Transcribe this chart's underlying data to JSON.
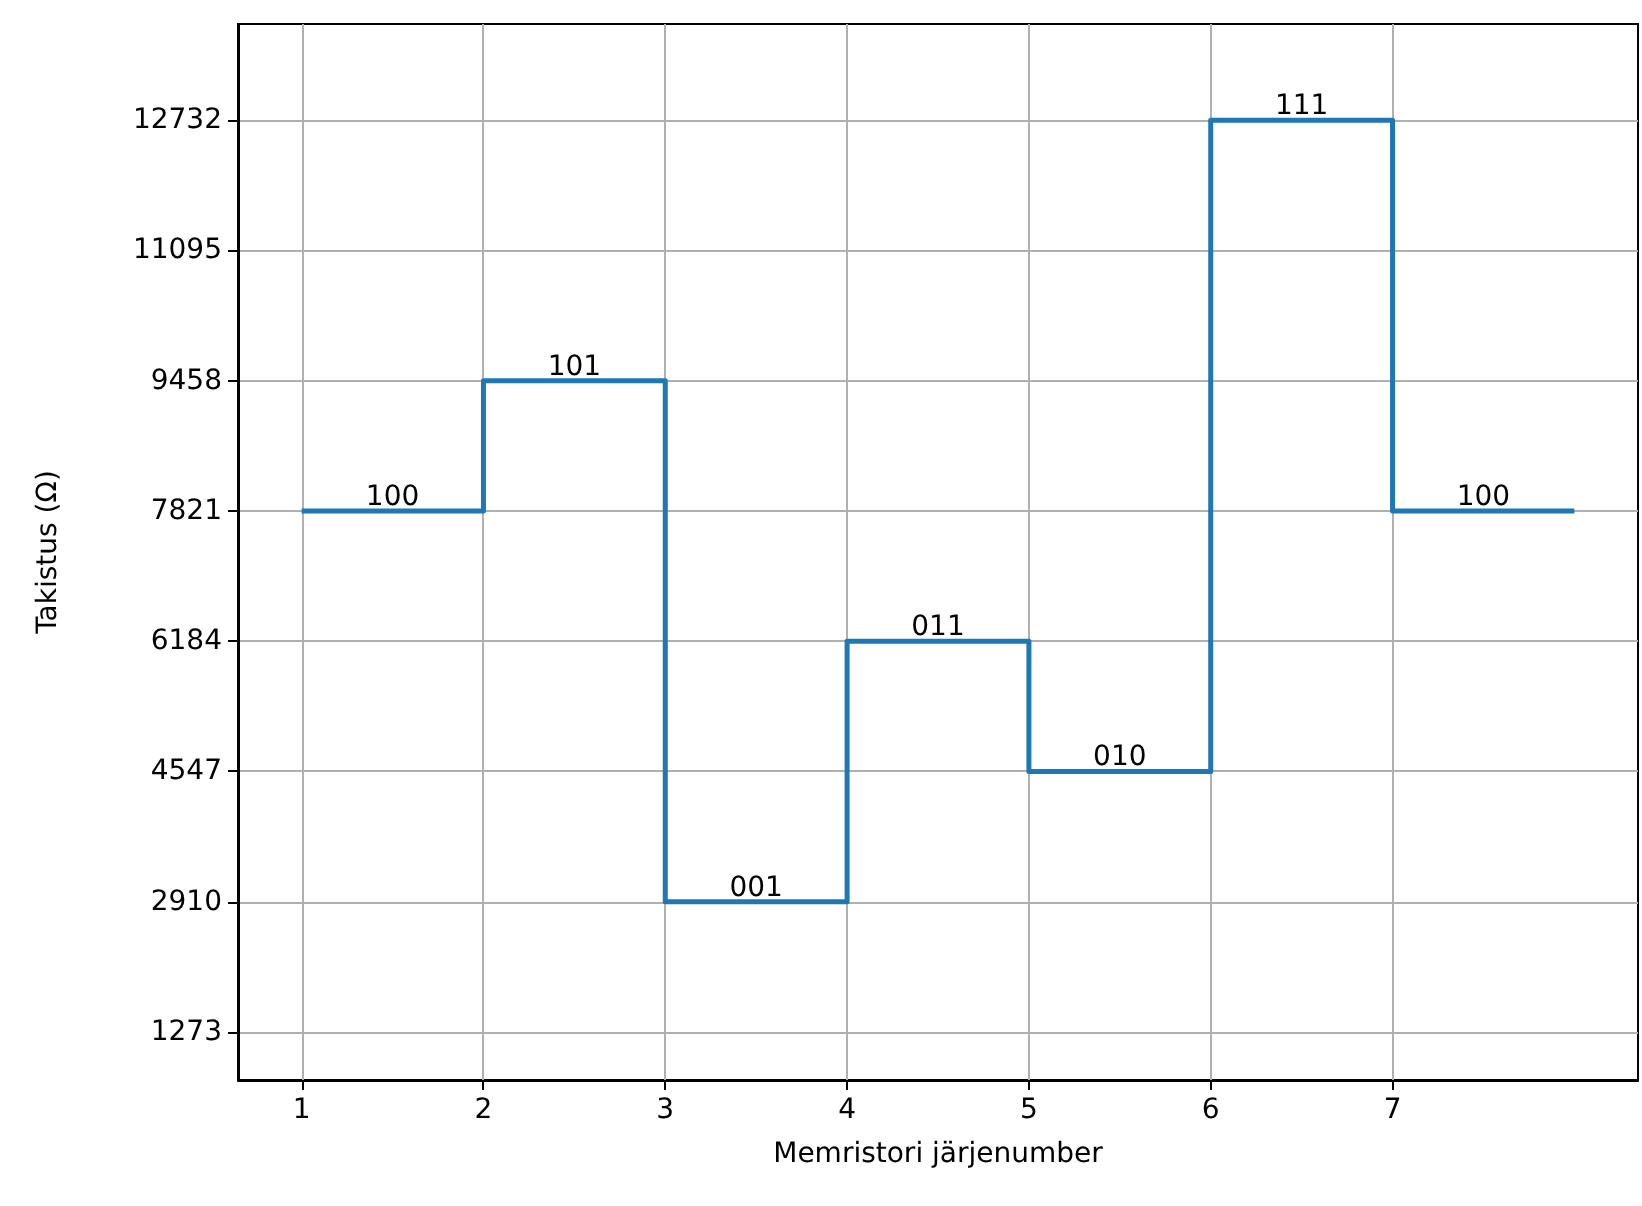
{
  "chart_data": {
    "type": "step",
    "xlabel": "Memristori järjenumber",
    "ylabel": "Takistus (Ω)",
    "x": [
      1,
      2,
      3,
      4,
      5,
      6,
      7,
      8
    ],
    "series": [
      {
        "color": "#1f77b4",
        "values": [
          7821,
          9458,
          2910,
          6184,
          4547,
          12732,
          7821,
          7821
        ]
      }
    ],
    "xlim": [
      0.65,
      8.35
    ],
    "xticks": [
      1,
      2,
      3,
      4,
      5,
      6,
      7
    ],
    "ylim": [
      670,
      13940
    ],
    "yticks": [
      1273,
      2910,
      4547,
      6184,
      7821,
      9458,
      11095,
      12732
    ],
    "grid": true,
    "marker": "none",
    "line_style": "solid",
    "annotations": [
      {
        "text": "100",
        "x": 1.5,
        "y": 7821
      },
      {
        "text": "101",
        "x": 2.5,
        "y": 9458
      },
      {
        "text": "001",
        "x": 3.5,
        "y": 2910
      },
      {
        "text": "011",
        "x": 4.5,
        "y": 6184
      },
      {
        "text": "010",
        "x": 5.5,
        "y": 4547
      },
      {
        "text": "111",
        "x": 6.5,
        "y": 12732
      },
      {
        "text": "100",
        "x": 7.5,
        "y": 7821
      }
    ]
  }
}
